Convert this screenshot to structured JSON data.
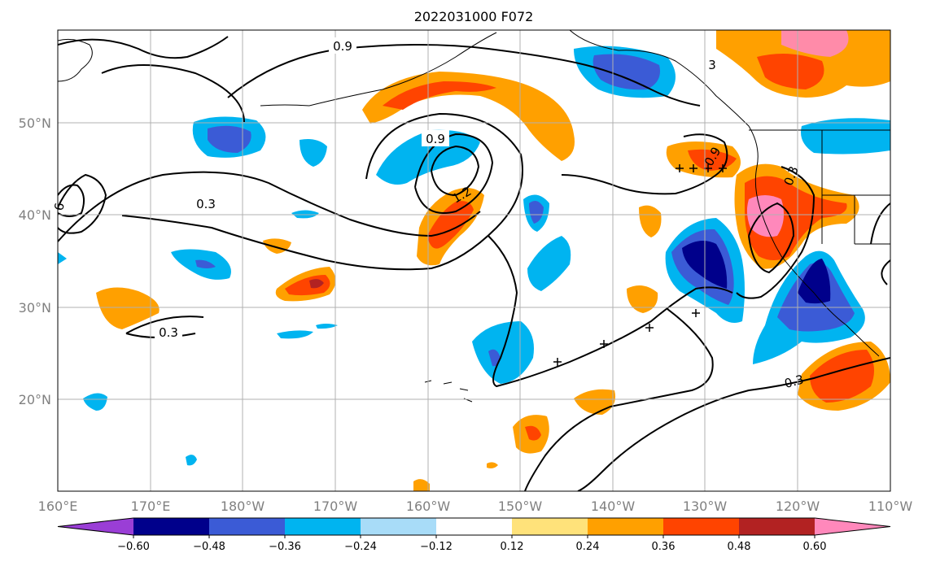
{
  "title": "2022031000 F072",
  "lat_labels": [
    "50°N",
    "40°N",
    "30°N",
    "20°N"
  ],
  "lon_labels": [
    "160°E",
    "170°E",
    "180°W",
    "170°W",
    "160°W",
    "150°W",
    "140°W",
    "130°W",
    "120°W",
    "110°W"
  ],
  "colorbar": {
    "ticks": [
      "−0.60",
      "−0.48",
      "−0.36",
      "−0.24",
      "−0.12",
      "0.12",
      "0.24",
      "0.36",
      "0.48",
      "0.60"
    ],
    "colors": [
      "#9a3ed6",
      "#00008b",
      "#3b5bd6",
      "#00b4f0",
      "#a8dcf8",
      "#ffffff",
      "#ffe27a",
      "#ffa000",
      "#ff4400",
      "#b22222",
      "#ff88bb"
    ]
  },
  "contour_labels": [
    {
      "text": "0.9"
    },
    {
      "text": "0.9"
    },
    {
      "text": "0.3"
    },
    {
      "text": "1.2"
    },
    {
      "text": "0.3"
    },
    {
      "text": "0.9"
    },
    {
      "text": "0.3"
    },
    {
      "text": "0.3"
    },
    {
      "text": "3"
    },
    {
      "text": "6"
    }
  ]
}
